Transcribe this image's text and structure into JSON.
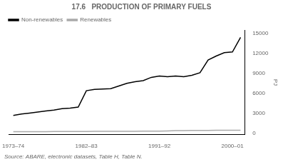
{
  "chart_data": {
    "type": "line",
    "title": "17.6   PRODUCTION OF PRIMARY FUELS",
    "y_label": "PJ",
    "annotation": "Source: ABARE, electronic datasets, Table H, Table N.",
    "categories": [
      "1973–74",
      null,
      null,
      null,
      null,
      null,
      null,
      null,
      null,
      "1982–83",
      null,
      null,
      null,
      null,
      null,
      null,
      null,
      null,
      "1991–92",
      null,
      null,
      null,
      null,
      null,
      null,
      null,
      null,
      "2000–01",
      null
    ],
    "series": [
      {
        "name": "Non-renewables",
        "color": "#000000",
        "values": [
          2700,
          2900,
          3050,
          3200,
          3350,
          3500,
          3700,
          3800,
          3950,
          6400,
          6600,
          6650,
          6700,
          7100,
          7500,
          7750,
          7900,
          8400,
          8600,
          8500,
          8600,
          8500,
          8700,
          9100,
          11000,
          11600,
          12100,
          12200,
          14400
        ]
      },
      {
        "name": "Renewables",
        "color": "#aaaaaa",
        "values": [
          250,
          255,
          260,
          265,
          270,
          275,
          280,
          285,
          290,
          295,
          300,
          305,
          310,
          315,
          320,
          325,
          330,
          335,
          340,
          380,
          420,
          430,
          440,
          450,
          460,
          465,
          470,
          475,
          480
        ]
      }
    ],
    "ylim": [
      -200,
      15500
    ],
    "yticks": [
      0,
      3000,
      6000,
      9000,
      12000,
      15000
    ],
    "grid": false,
    "legend": "upper left"
  }
}
